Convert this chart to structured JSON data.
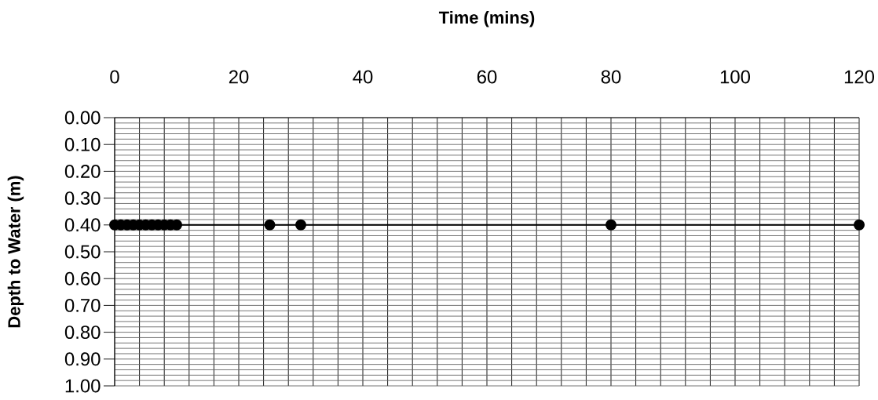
{
  "chart_data": {
    "type": "line",
    "xlabel": "Time (mins)",
    "ylabel": "Depth to Water (m)",
    "x": [
      0,
      1,
      2,
      3,
      4,
      5,
      6,
      7,
      8,
      9,
      10,
      25,
      30,
      80,
      120
    ],
    "series": [
      {
        "color": "#000000",
        "values": [
          0.4,
          0.4,
          0.4,
          0.4,
          0.4,
          0.4,
          0.4,
          0.4,
          0.4,
          0.4,
          0.4,
          0.4,
          0.4,
          0.4,
          0.4
        ]
      }
    ],
    "xlim": [
      0,
      120
    ],
    "xticks": [
      0,
      20,
      40,
      60,
      80,
      100,
      120
    ],
    "ylim": [
      1,
      0
    ],
    "yticks": [
      {
        "value": 0,
        "label": "0.00"
      },
      {
        "value": 0.1,
        "label": "0.10"
      },
      {
        "value": 0.2,
        "label": "0.20"
      },
      {
        "value": 0.3,
        "label": "0.30"
      },
      {
        "value": 0.4,
        "label": "0.40"
      },
      {
        "value": 0.5,
        "label": "0.50"
      },
      {
        "value": 0.6,
        "label": "0.60"
      },
      {
        "value": 0.7,
        "label": "0.70"
      },
      {
        "value": 0.8,
        "label": "0.80"
      },
      {
        "value": 0.9,
        "label": "0.90"
      },
      {
        "value": 1,
        "label": "1.00"
      }
    ],
    "grid": true,
    "marker": "circle",
    "line_style": "solid"
  }
}
